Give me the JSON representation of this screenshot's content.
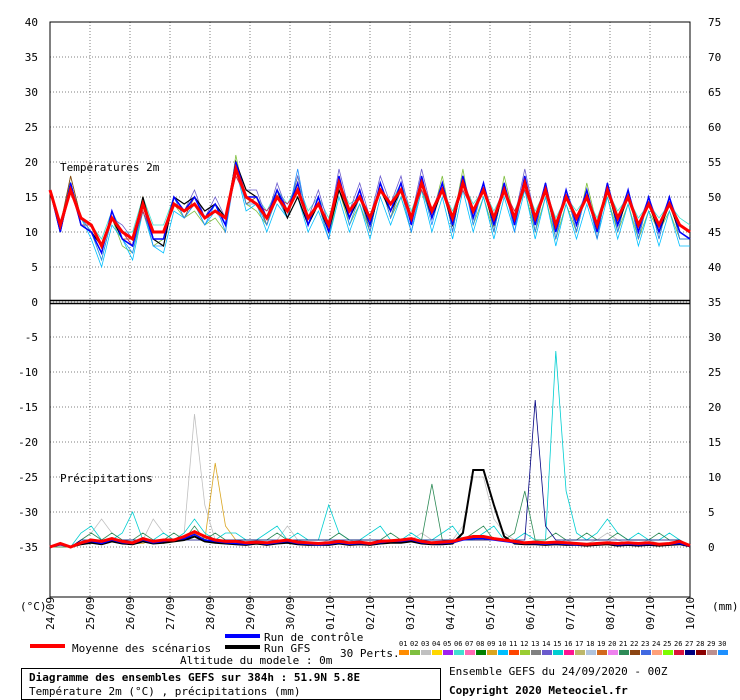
{
  "chart_data": {
    "type": "line",
    "x_dates": [
      "24/09",
      "25/09",
      "26/09",
      "27/09",
      "28/09",
      "29/09",
      "30/09",
      "01/10",
      "02/10",
      "03/10",
      "04/10",
      "05/10",
      "06/10",
      "07/10",
      "08/10",
      "09/10",
      "10/10"
    ],
    "y_left": {
      "ticks": [
        40,
        35,
        30,
        25,
        20,
        15,
        10,
        5,
        0,
        -5,
        -10,
        -15,
        -20,
        -25,
        -30,
        -35
      ],
      "unit": "(°C)"
    },
    "y_right": {
      "ticks": [
        75,
        70,
        65,
        60,
        55,
        50,
        45,
        40,
        35,
        30,
        25,
        20,
        15,
        10,
        5,
        0
      ],
      "unit": "(mm)"
    },
    "panels": {
      "temperature_label": "Températures 2m",
      "precip_label": "Précipitations"
    },
    "temperature": {
      "mean": [
        16,
        11,
        16,
        12,
        11,
        8,
        12,
        10,
        9,
        14,
        10,
        10,
        14,
        13,
        14,
        12,
        13,
        12,
        19,
        15,
        14,
        12,
        15,
        13,
        16,
        12,
        14,
        11,
        17,
        13,
        15,
        12,
        16,
        14,
        16,
        12,
        17,
        13,
        16,
        12,
        17,
        13,
        16,
        12,
        16,
        12,
        17,
        12,
        16,
        11,
        15,
        12,
        15,
        11,
        16,
        12,
        15,
        11,
        14,
        11,
        14,
        11,
        10
      ],
      "control": [
        16,
        10,
        17,
        11,
        10,
        7,
        13,
        9,
        8,
        14,
        9,
        9,
        15,
        13,
        15,
        12,
        14,
        11,
        20,
        15,
        15,
        12,
        16,
        13,
        17,
        11,
        15,
        10,
        18,
        12,
        16,
        11,
        17,
        13,
        17,
        11,
        18,
        12,
        17,
        11,
        18,
        12,
        17,
        11,
        17,
        11,
        18,
        11,
        17,
        10,
        16,
        11,
        16,
        10,
        17,
        11,
        16,
        10,
        15,
        10,
        15,
        10,
        9
      ],
      "gfs": [
        16,
        10,
        17,
        11,
        10,
        8,
        12,
        9,
        8,
        15,
        9,
        8,
        15,
        14,
        15,
        13,
        14,
        12,
        20,
        16,
        15,
        12,
        16,
        12,
        15,
        11,
        14,
        10,
        16,
        12,
        15,
        11,
        16,
        13,
        16,
        12,
        17,
        12,
        16,
        11,
        17,
        13,
        16,
        11,
        16,
        12,
        17,
        12,
        16,
        11,
        15,
        12,
        15,
        11,
        16,
        11,
        15,
        11,
        14,
        10,
        14,
        10,
        9
      ],
      "members": [
        [
          16,
          10,
          18,
          12,
          10,
          6,
          12,
          8,
          7,
          13,
          8,
          9,
          14,
          12,
          13,
          11,
          12,
          10,
          21,
          14,
          13,
          11,
          15,
          12,
          18,
          12,
          14,
          9,
          16,
          11,
          14,
          10,
          17,
          12,
          15,
          10,
          16,
          12,
          18,
          11,
          19,
          11,
          15,
          10,
          18,
          12,
          16,
          10,
          15,
          9,
          14,
          10,
          17,
          11,
          15,
          10,
          14,
          9,
          13,
          10,
          13,
          9,
          9
        ],
        [
          16,
          11,
          17,
          11,
          11,
          9,
          13,
          10,
          10,
          15,
          11,
          11,
          15,
          14,
          15,
          13,
          14,
          12,
          18,
          15,
          15,
          13,
          16,
          14,
          17,
          13,
          15,
          12,
          17,
          14,
          15,
          12,
          16,
          14,
          17,
          13,
          17,
          13,
          16,
          13,
          17,
          14,
          16,
          13,
          16,
          13,
          17,
          13,
          16,
          12,
          15,
          13,
          15,
          12,
          16,
          13,
          15,
          12,
          14,
          12,
          14,
          12,
          11
        ],
        [
          16,
          10,
          16,
          12,
          9,
          5,
          11,
          9,
          6,
          13,
          8,
          7,
          13,
          12,
          14,
          11,
          13,
          11,
          19,
          13,
          14,
          10,
          14,
          12,
          15,
          10,
          13,
          9,
          15,
          10,
          14,
          9,
          15,
          11,
          15,
          10,
          16,
          10,
          15,
          9,
          16,
          10,
          15,
          9,
          15,
          10,
          16,
          9,
          15,
          8,
          14,
          9,
          14,
          9,
          15,
          9,
          14,
          8,
          13,
          8,
          13,
          8,
          8
        ],
        [
          16,
          11,
          17,
          12,
          11,
          8,
          12,
          11,
          9,
          14,
          10,
          10,
          15,
          13,
          16,
          12,
          15,
          12,
          20,
          16,
          16,
          12,
          17,
          13,
          18,
          12,
          16,
          11,
          19,
          13,
          17,
          12,
          18,
          14,
          18,
          12,
          19,
          13,
          17,
          12,
          18,
          13,
          17,
          12,
          17,
          12,
          19,
          12,
          17,
          11,
          16,
          12,
          16,
          11,
          17,
          12,
          16,
          11,
          15,
          11,
          15,
          11,
          10
        ],
        [
          16,
          10,
          17,
          11,
          10,
          7,
          12,
          10,
          8,
          14,
          9,
          9,
          14,
          13,
          14,
          12,
          13,
          11,
          19,
          15,
          14,
          12,
          15,
          13,
          16,
          11,
          14,
          10,
          17,
          12,
          15,
          11,
          16,
          13,
          16,
          11,
          17,
          12,
          16,
          11,
          17,
          12,
          16,
          11,
          16,
          11,
          17,
          11,
          16,
          10,
          15,
          11,
          15,
          10,
          16,
          11,
          15,
          10,
          14,
          10,
          14,
          10,
          9
        ],
        [
          16,
          11,
          18,
          12,
          10,
          7,
          13,
          9,
          9,
          15,
          10,
          10,
          15,
          12,
          15,
          12,
          14,
          11,
          20,
          14,
          15,
          11,
          16,
          12,
          17,
          11,
          15,
          10,
          18,
          12,
          16,
          10,
          17,
          12,
          17,
          11,
          18,
          12,
          17,
          10,
          18,
          12,
          17,
          10,
          17,
          11,
          18,
          10,
          17,
          9,
          16,
          10,
          16,
          9,
          17,
          10,
          16,
          9,
          15,
          9,
          15,
          9,
          9
        ],
        [
          16,
          10,
          16,
          11,
          11,
          8,
          12,
          10,
          8,
          13,
          9,
          9,
          14,
          13,
          14,
          12,
          13,
          12,
          18,
          15,
          14,
          13,
          15,
          14,
          16,
          12,
          14,
          11,
          16,
          13,
          15,
          12,
          16,
          14,
          16,
          12,
          16,
          13,
          16,
          12,
          16,
          13,
          16,
          12,
          16,
          13,
          16,
          12,
          16,
          11,
          15,
          12,
          15,
          11,
          16,
          12,
          15,
          11,
          14,
          11,
          14,
          11,
          10
        ],
        [
          16,
          11,
          17,
          12,
          10,
          6,
          12,
          9,
          7,
          14,
          8,
          8,
          15,
          12,
          14,
          11,
          14,
          10,
          19,
          14,
          14,
          11,
          15,
          12,
          19,
          11,
          14,
          9,
          18,
          11,
          15,
          10,
          17,
          12,
          16,
          10,
          17,
          11,
          17,
          10,
          18,
          11,
          17,
          10,
          17,
          10,
          18,
          10,
          17,
          9,
          16,
          10,
          16,
          9,
          17,
          10,
          16,
          9,
          15,
          9,
          15,
          9,
          9
        ]
      ]
    },
    "precipitation": {
      "mean": [
        0,
        0.5,
        0,
        0.6,
        1,
        0.8,
        1.2,
        0.8,
        0.6,
        1.2,
        0.8,
        1,
        1,
        1.5,
        2.2,
        1.5,
        1,
        0.8,
        0.8,
        0.6,
        0.7,
        0.6,
        0.8,
        1,
        0.7,
        0.6,
        0.5,
        0.6,
        0.8,
        0.6,
        0.7,
        0.5,
        0.8,
        0.9,
        1,
        1.2,
        0.8,
        0.6,
        0.7,
        0.8,
        1.2,
        1.5,
        1.5,
        1.2,
        1,
        0.8,
        0.6,
        0.7,
        0.6,
        0.7,
        0.6,
        0.5,
        0.4,
        0.5,
        0.6,
        0.5,
        0.6,
        0.5,
        0.6,
        0.4,
        0.5,
        0.8,
        0.2
      ],
      "control": [
        0,
        0.3,
        0,
        0.5,
        0.8,
        0.5,
        1,
        0.6,
        0.5,
        1,
        0.6,
        0.8,
        1,
        1.2,
        1.8,
        1,
        0.8,
        0.6,
        0.5,
        0.4,
        0.6,
        0.4,
        0.6,
        0.8,
        0.5,
        0.4,
        0.3,
        0.4,
        0.6,
        0.4,
        0.5,
        0.4,
        0.6,
        0.8,
        0.8,
        1,
        0.6,
        0.5,
        0.5,
        0.6,
        1,
        1.2,
        1.2,
        1,
        0.8,
        0.6,
        0.5,
        0.5,
        0.4,
        0.5,
        0.4,
        0.3,
        0.3,
        0.4,
        0.5,
        0.3,
        0.4,
        0.3,
        0.4,
        0.3,
        0.4,
        0.5,
        0.1
      ],
      "gfs": [
        0,
        0.4,
        0,
        0.4,
        0.6,
        0.4,
        0.8,
        0.5,
        0.4,
        0.8,
        0.5,
        0.6,
        0.8,
        1,
        1.5,
        0.8,
        0.6,
        0.5,
        0.4,
        0.3,
        0.5,
        0.3,
        0.5,
        0.6,
        0.4,
        0.3,
        0.3,
        0.3,
        0.5,
        0.3,
        0.4,
        0.3,
        0.5,
        0.6,
        0.6,
        0.8,
        0.5,
        0.4,
        0.4,
        0.5,
        2,
        11,
        11,
        6,
        1.5,
        0.5,
        0.4,
        0.4,
        0.3,
        0.4,
        0.3,
        0.3,
        0.2,
        0.3,
        0.4,
        0.2,
        0.3,
        0.2,
        0.3,
        0.2,
        0.3,
        0.4,
        0.1
      ],
      "members": [
        [
          0,
          0.5,
          0,
          1,
          2,
          4,
          2,
          1,
          0.5,
          1,
          4,
          2,
          1,
          2,
          19,
          6,
          1,
          0.5,
          1,
          0.5,
          0.3,
          0.5,
          1,
          3,
          1,
          0.5,
          0.5,
          1,
          2,
          1,
          0.5,
          0.5,
          1,
          1,
          1,
          1,
          2,
          1,
          1,
          1,
          3,
          10,
          10,
          4,
          2,
          1,
          0.5,
          1,
          0.5,
          0.5,
          1,
          0.5,
          0.5,
          1,
          2,
          1,
          0.5,
          0.5,
          1,
          0.5,
          0.5,
          1,
          0.2
        ],
        [
          0,
          0,
          0,
          0.5,
          1,
          1,
          1,
          0.5,
          0.5,
          0.5,
          1,
          0.5,
          1,
          1,
          2,
          1,
          12,
          3,
          1,
          0.5,
          0.5,
          0.5,
          0.5,
          1,
          0.5,
          0.5,
          0.5,
          0.5,
          1,
          0.5,
          0.5,
          0.5,
          0.5,
          1,
          1,
          1,
          0.5,
          0.5,
          0.5,
          0.5,
          1,
          1,
          1,
          1,
          1,
          1,
          0.5,
          0.5,
          0.5,
          0.5,
          0.5,
          0.5,
          0.5,
          0.5,
          0.5,
          0.5,
          0.5,
          0.5,
          0.5,
          0.5,
          0.5,
          0.5,
          0.2
        ],
        [
          0,
          0.5,
          0,
          2,
          3,
          1,
          1,
          2,
          5,
          1,
          1,
          2,
          1,
          2,
          4,
          2,
          1,
          2,
          2,
          1,
          1,
          2,
          3,
          1,
          2,
          1,
          1,
          6,
          2,
          1,
          1,
          2,
          3,
          1,
          1,
          2,
          1,
          1,
          2,
          3,
          1,
          1,
          2,
          3,
          1,
          1,
          2,
          1,
          1,
          28,
          8,
          2,
          1,
          2,
          4,
          2,
          1,
          2,
          1,
          1,
          2,
          1,
          0.2
        ],
        [
          0,
          0,
          0,
          1,
          2,
          1,
          2,
          1,
          1,
          2,
          1,
          1,
          2,
          1,
          3,
          1,
          2,
          1,
          1,
          1,
          1,
          1,
          2,
          1,
          1,
          1,
          1,
          1,
          2,
          1,
          1,
          1,
          1,
          2,
          1,
          1,
          1,
          9,
          1,
          1,
          1,
          2,
          3,
          1,
          1,
          2,
          8,
          1,
          1,
          2,
          1,
          1,
          2,
          1,
          1,
          2,
          1,
          1,
          1,
          2,
          1,
          1,
          0.2
        ],
        [
          0,
          0.5,
          0,
          1,
          1,
          1,
          1,
          1,
          1,
          1,
          1,
          1,
          1,
          1,
          1,
          1,
          1,
          1,
          1,
          1,
          1,
          1,
          1,
          1,
          1,
          1,
          1,
          1,
          1,
          1,
          1,
          1,
          1,
          1,
          1,
          1,
          1,
          1,
          1,
          1,
          1,
          1,
          1,
          1,
          1,
          1,
          1,
          21,
          3,
          1,
          1,
          1,
          1,
          1,
          1,
          1,
          1,
          1,
          1,
          1,
          1,
          1,
          0.2
        ]
      ]
    },
    "legend": {
      "moyenne": "Moyenne des scénarios",
      "controle": "Run de contrôle",
      "gfs": "Run GFS",
      "altitude": "Altitude du modele : 0m",
      "perts_label": "30 Perts.",
      "pert_numbers": [
        "01",
        "02",
        "03",
        "04",
        "05",
        "06",
        "07",
        "08",
        "09",
        "10",
        "11",
        "12",
        "13",
        "14",
        "15",
        "16",
        "17",
        "18",
        "19",
        "20",
        "21",
        "22",
        "23",
        "24",
        "25",
        "26",
        "27",
        "28",
        "29",
        "30"
      ],
      "pert_colors": [
        "#ff8c00",
        "#7fbf3f",
        "#c0c0c0",
        "#ffd700",
        "#a020f0",
        "#40e0d0",
        "#ff69b4",
        "#008000",
        "#daa520",
        "#00bfff",
        "#ff4500",
        "#9acd32",
        "#808080",
        "#6a5acd",
        "#00ced1",
        "#ff1493",
        "#bdb76b",
        "#b0c4de",
        "#d2691e",
        "#ee82ee",
        "#2e8b57",
        "#8b4513",
        "#4169e1",
        "#ffa07a",
        "#7cfc00",
        "#dc143c",
        "#000080",
        "#8b0000",
        "#bc8f8f",
        "#1e90ff"
      ]
    },
    "caption": {
      "title": "Diagramme des ensembles GEFS sur 384h : 51.9N 5.8E",
      "subtitle": "Température 2m (°C) , précipitations (mm)",
      "ensemble": "Ensemble GEFS du 24/09/2020 - 00Z",
      "copyright": "Copyright 2020 Meteociel.fr"
    },
    "colors": {
      "mean": "#ff0000",
      "control": "#0000ff",
      "gfs": "#000000",
      "grid": "#000000"
    }
  }
}
